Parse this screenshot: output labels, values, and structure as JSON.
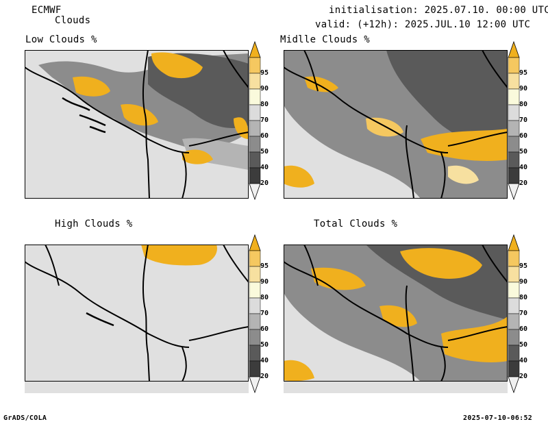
{
  "header": {
    "model": "ECMWF",
    "product": "Clouds",
    "init": "initialisation: 2025.07.10. 00:00 UTC",
    "valid": "valid: (+12h): 2025.JUL.10 12:00 UTC"
  },
  "panels": [
    {
      "title": "Low Clouds %"
    },
    {
      "title": "Midlle Clouds %"
    },
    {
      "title": "High Clouds %"
    },
    {
      "title": "Total Clouds %"
    }
  ],
  "colorbar": {
    "ticks": [
      "95",
      "90",
      "80",
      "70",
      "60",
      "50",
      "40",
      "20"
    ],
    "colors": [
      "#f0b01e",
      "#f5c860",
      "#f7e0a0",
      "#fafadc",
      "#dcdcdc",
      "#b4b4b4",
      "#8c8c8c",
      "#5a5a5a",
      "#3c3c3c",
      "#f0f0f0"
    ]
  },
  "footer": {
    "left": "GrADS/COLA",
    "right": "2025-07-10-06:52"
  }
}
